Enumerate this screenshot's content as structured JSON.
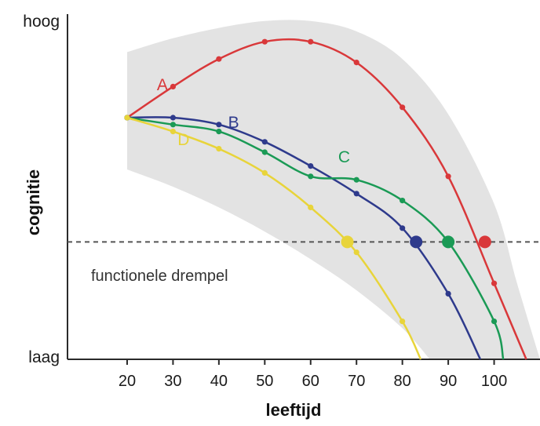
{
  "chart_data": {
    "type": "line",
    "title": "",
    "xlabel": "leeftijd",
    "ylabel": "cognitie",
    "y_top_label": "hoog",
    "y_bottom_label": "laag",
    "x_ticks": [
      20,
      30,
      40,
      50,
      60,
      70,
      80,
      90,
      100
    ],
    "xlim": [
      7,
      110
    ],
    "ylim": [
      0,
      100
    ],
    "threshold": {
      "label": "functionele drempel",
      "value": 34,
      "style": "dashed",
      "color": "#555555"
    },
    "band": {
      "color": "#e3e3e3",
      "upper": [
        [
          20,
          89
        ],
        [
          30,
          93
        ],
        [
          40,
          96
        ],
        [
          50,
          98
        ],
        [
          60,
          98
        ],
        [
          70,
          95
        ],
        [
          80,
          87
        ],
        [
          90,
          71
        ],
        [
          100,
          45
        ],
        [
          105,
          22
        ],
        [
          110,
          0
        ]
      ],
      "lower": [
        [
          20,
          55
        ],
        [
          30,
          50
        ],
        [
          40,
          44
        ],
        [
          50,
          37
        ],
        [
          60,
          29
        ],
        [
          70,
          20
        ],
        [
          80,
          9
        ],
        [
          86,
          0
        ]
      ]
    },
    "series": [
      {
        "name": "A",
        "color": "#d9383a",
        "threshold_age": 98,
        "x": [
          20,
          30,
          40,
          50,
          60,
          70,
          80,
          90,
          100,
          107
        ],
        "y": [
          70,
          79,
          87,
          92,
          92,
          86,
          73,
          53,
          22,
          0
        ]
      },
      {
        "name": "B",
        "color": "#2e3a8c",
        "threshold_age": 83,
        "x": [
          20,
          30,
          40,
          50,
          60,
          70,
          80,
          90,
          97
        ],
        "y": [
          70,
          70,
          68,
          63,
          56,
          48,
          38,
          19,
          0
        ]
      },
      {
        "name": "C",
        "color": "#1a9a55",
        "threshold_age": 90,
        "x": [
          20,
          30,
          40,
          50,
          60,
          70,
          80,
          90,
          100,
          102
        ],
        "y": [
          70,
          68,
          66,
          60,
          53,
          52,
          46,
          34,
          11,
          0
        ]
      },
      {
        "name": "D",
        "color": "#e8d43a",
        "threshold_age": 68,
        "x": [
          20,
          30,
          40,
          50,
          60,
          70,
          80,
          84
        ],
        "y": [
          70,
          66,
          61,
          54,
          44,
          31,
          11,
          0
        ]
      }
    ]
  }
}
